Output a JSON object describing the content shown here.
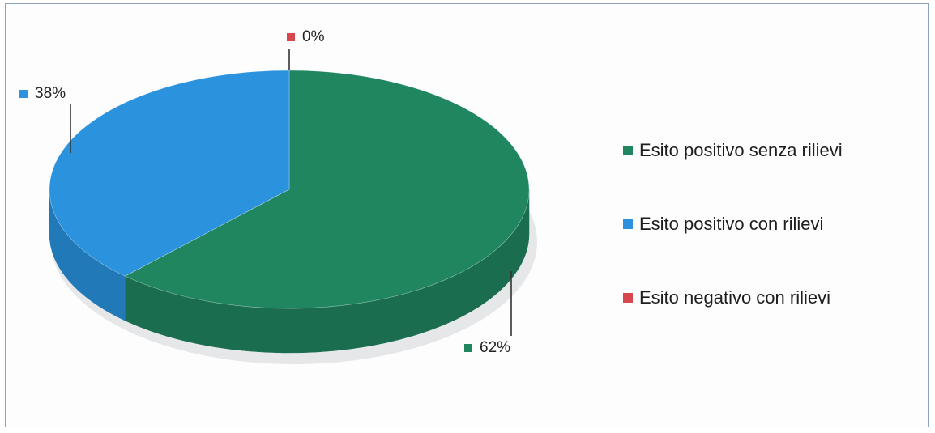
{
  "chart_data": {
    "type": "pie",
    "style": "3d",
    "slices": [
      {
        "label": "Esito positivo senza rilievi",
        "value": 62,
        "value_label": "62%",
        "color": "#1f8660",
        "side_color": "#1a6e4f"
      },
      {
        "label": "Esito positivo con rilievi",
        "value": 38,
        "value_label": "38%",
        "color": "#2b93dd",
        "side_color": "#2179b8"
      },
      {
        "label": "Esito negativo con rilievi",
        "value": 0,
        "value_label": "0%",
        "color": "#d6484e",
        "side_color": "#b23a40"
      }
    ],
    "legend_position": "right"
  }
}
